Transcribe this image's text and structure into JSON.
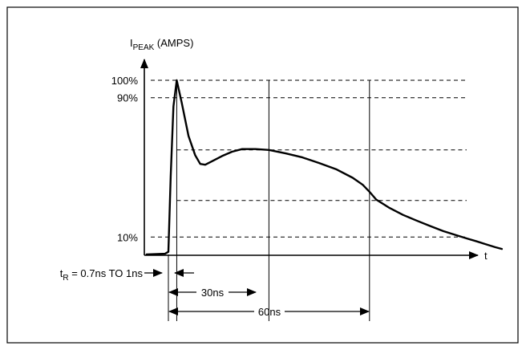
{
  "chart_data": {
    "type": "line",
    "title": "",
    "xlabel": "t",
    "ylabel": {
      "main": "I",
      "sub": "PEAK",
      "suffix": " (AMPS)"
    },
    "ylim": [
      0,
      100
    ],
    "xlim": [
      0,
      115
    ],
    "y_ticks": [
      {
        "label": "100%",
        "value": 100
      },
      {
        "label": "90%",
        "value": 90
      },
      {
        "label": "10%",
        "value": 10
      }
    ],
    "reference_levels": [
      {
        "value": 100,
        "tick": "100%"
      },
      {
        "value": 90,
        "tick": "90%"
      },
      {
        "value": 60,
        "tick": ""
      },
      {
        "value": 31,
        "tick": ""
      },
      {
        "value": 10,
        "tick": "10%"
      }
    ],
    "vertical_markers": [
      {
        "x": 2.5,
        "name": "peak"
      },
      {
        "x": 30,
        "name": "30ns"
      },
      {
        "x": 60,
        "name": "60ns"
      }
    ],
    "series": [
      {
        "values": [
          [
            -6.5,
            0.0
          ],
          [
            -1.0,
            0.4
          ],
          [
            0.0,
            1.5
          ],
          [
            0.7,
            45.0
          ],
          [
            1.5,
            85.0
          ],
          [
            2.5,
            100.0
          ],
          [
            4.0,
            87.0
          ],
          [
            6.0,
            68.0
          ],
          [
            8.0,
            57.0
          ],
          [
            9.5,
            52.0
          ],
          [
            11.0,
            51.5
          ],
          [
            13.0,
            53.5
          ],
          [
            16.0,
            56.5
          ],
          [
            19.0,
            59.0
          ],
          [
            22.0,
            60.5
          ],
          [
            26.0,
            60.5
          ],
          [
            30.0,
            60.0
          ],
          [
            35.0,
            58.0
          ],
          [
            40.0,
            55.7
          ],
          [
            45.0,
            52.5
          ],
          [
            50.0,
            49.0
          ],
          [
            55.0,
            44.0
          ],
          [
            58.0,
            40.0
          ],
          [
            60.0,
            36.0
          ],
          [
            62.0,
            31.5
          ],
          [
            66.0,
            26.7
          ],
          [
            70.0,
            22.7
          ],
          [
            74.0,
            19.5
          ],
          [
            78.0,
            16.4
          ],
          [
            82.0,
            13.4
          ],
          [
            86.0,
            11.0
          ],
          [
            89.0,
            9.2
          ],
          [
            92.0,
            7.5
          ],
          [
            94.5,
            6.0
          ],
          [
            97.5,
            4.2
          ],
          [
            99.5,
            3.2
          ]
        ]
      }
    ],
    "annotations": {
      "rise_time": {
        "main": "t",
        "sub": "R",
        "suffix": " = 0.7ns TO 1ns",
        "from": 0,
        "to": 2.5
      },
      "interval_30": {
        "label": "30ns",
        "from": 0,
        "to": 30
      },
      "interval_60": {
        "label": "60ns",
        "from": 0,
        "to": 60
      }
    },
    "legend": "none",
    "grid": false
  }
}
